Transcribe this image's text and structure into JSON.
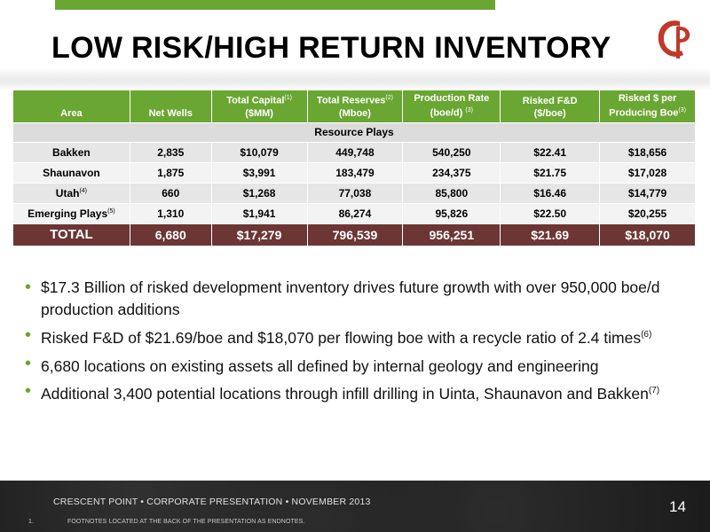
{
  "title": "LOW RISK/HIGH RETURN INVENTORY",
  "colors": {
    "accent_green": "#6aa632",
    "total_row": "#6b3634",
    "logo_red": "#c0392b"
  },
  "logo": {
    "icon": "crescent-point-logo"
  },
  "table": {
    "headers": [
      {
        "label": "Area",
        "sup": ""
      },
      {
        "label": "Net Wells",
        "sup": ""
      },
      {
        "label": "Total Capital",
        "sup": "(1)",
        "label2": "($MM)"
      },
      {
        "label": "Total Reserves",
        "sup": "(2)",
        "label2": "(Mboe)"
      },
      {
        "label": "Production Rate",
        "sup": "",
        "label2": "(boe/d)",
        "sup2": "(3)"
      },
      {
        "label": "Risked F&D",
        "sup": "",
        "label2": "($/boe)"
      },
      {
        "label": "Risked $ per",
        "sup": "",
        "label2": "Producing Boe",
        "sup2": "(3)"
      }
    ],
    "section_label": "Resource Plays",
    "rows": [
      {
        "area": "Bakken",
        "area_sup": "",
        "net_wells": "2,835",
        "capital": "$10,079",
        "reserves": "449,748",
        "production": "540,250",
        "fd": "$22.41",
        "per_boe": "$18,656"
      },
      {
        "area": "Shaunavon",
        "area_sup": "",
        "net_wells": "1,875",
        "capital": "$3,991",
        "reserves": "183,479",
        "production": "234,375",
        "fd": "$21.75",
        "per_boe": "$17,028"
      },
      {
        "area": "Utah",
        "area_sup": "(4)",
        "net_wells": "660",
        "capital": "$1,268",
        "reserves": "77,038",
        "production": "85,800",
        "fd": "$16.46",
        "per_boe": "$14,779"
      },
      {
        "area": "Emerging Plays",
        "area_sup": "(5)",
        "net_wells": "1,310",
        "capital": "$1,941",
        "reserves": "86,274",
        "production": "95,826",
        "fd": "$22.50",
        "per_boe": "$20,255"
      }
    ],
    "total": {
      "area": "TOTAL",
      "net_wells": "6,680",
      "capital": "$17,279",
      "reserves": "796,539",
      "production": "956,251",
      "fd": "$21.69",
      "per_boe": "$18,070"
    }
  },
  "bullets": [
    {
      "text": "$17.3 Billion of risked development inventory drives future growth with over 950,000 boe/d production additions",
      "sup": ""
    },
    {
      "text": "Risked F&D of $21.69/boe and $18,070 per flowing boe with a recycle ratio of 2.4 times",
      "sup": "(6)"
    },
    {
      "text": "6,680 locations on existing assets all defined by internal geology and engineering",
      "sup": ""
    },
    {
      "text": "Additional 3,400 potential locations through infill drilling in Uinta, Shaunavon and Bakken",
      "sup": "(7)"
    }
  ],
  "footer": {
    "line": "CRESCENT POINT  •  CORPORATE PRESENTATION  •  NOVEMBER 2013",
    "footnote_num": "1.",
    "footnote": "FOOTNOTES LOCATED AT THE BACK OF THE PRESENTATION AS ENDNOTES.",
    "page": "14"
  }
}
